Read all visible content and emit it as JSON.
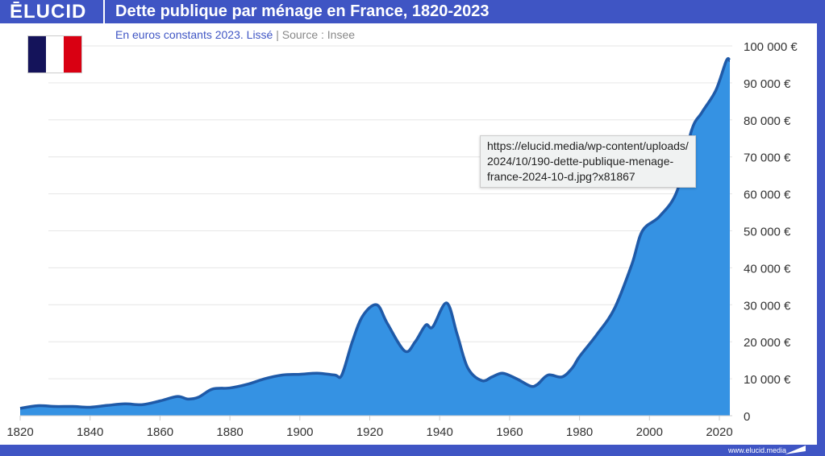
{
  "header": {
    "logo": "ĒLUCID",
    "title": "Dette publique par ménage en France, 1820-2023"
  },
  "subtitle": {
    "main": "En euros constants 2023. Lissé",
    "sep": "|",
    "source": "Source : Insee"
  },
  "footer": {
    "site": "www.elucid.media"
  },
  "colors": {
    "brand": "#3f55c4",
    "fill": "#3592e3",
    "line": "#1f5aa8",
    "flag": [
      "#14135a",
      "#ffffff",
      "#d90012"
    ]
  },
  "tooltip": {
    "lines": [
      "https://elucid.media/wp-content/uploads/",
      "2024/10/190-dette-publique-menage-",
      "france-2024-10-d.jpg?x81867"
    ]
  },
  "chart_data": {
    "type": "area",
    "title": "Dette publique par ménage en France, 1820-2023",
    "subtitle": "En euros constants 2023. Lissé",
    "xlim": [
      1820,
      2023
    ],
    "ylim": [
      0,
      100000
    ],
    "x_ticks": [
      1820,
      1840,
      1860,
      1880,
      1900,
      1920,
      1940,
      1960,
      1980,
      2000,
      2020
    ],
    "y_ticks": [
      "0",
      "10 000 €",
      "20 000 €",
      "30 000 €",
      "40 000 €",
      "50 000 €",
      "60 000 €",
      "70 000 €",
      "80 000 €",
      "90 000 €",
      "100 000 €"
    ],
    "grid": true,
    "x": [
      1820,
      1825,
      1830,
      1835,
      1840,
      1845,
      1850,
      1855,
      1860,
      1865,
      1868,
      1871,
      1875,
      1880,
      1885,
      1890,
      1895,
      1900,
      1905,
      1910,
      1912,
      1915,
      1918,
      1922,
      1925,
      1930,
      1933,
      1936,
      1938,
      1942,
      1945,
      1948,
      1952,
      1955,
      1958,
      1962,
      1966,
      1968,
      1971,
      1975,
      1978,
      1980,
      1985,
      1990,
      1995,
      1998,
      2003,
      2008,
      2012,
      2015,
      2019,
      2022,
      2023
    ],
    "y": [
      2000,
      2700,
      2500,
      2500,
      2300,
      2800,
      3200,
      3000,
      4000,
      5200,
      4500,
      5000,
      7200,
      7500,
      8500,
      10000,
      11000,
      11200,
      11500,
      11000,
      11000,
      20000,
      27000,
      30000,
      25000,
      17500,
      20000,
      24500,
      24000,
      30500,
      22000,
      13000,
      9500,
      10500,
      11500,
      10000,
      8000,
      8500,
      11000,
      10500,
      13000,
      16000,
      22000,
      29000,
      41000,
      50000,
      54000,
      61000,
      77000,
      82000,
      88000,
      96000,
      96000
    ]
  }
}
